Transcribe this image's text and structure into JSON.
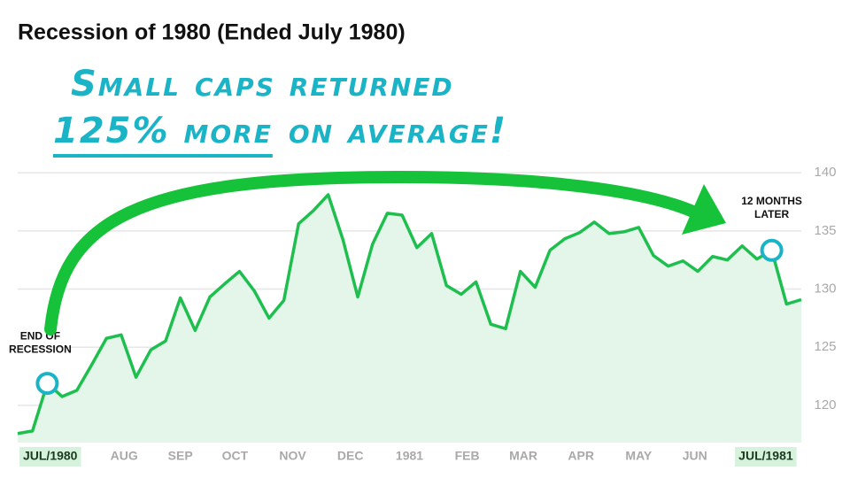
{
  "chart_data": {
    "type": "area",
    "title": "Recession of 1980 (Ended July 1980)",
    "headline": [
      "Small caps returned",
      "125% more",
      "on average!"
    ],
    "values": [
      117.58,
      117.8,
      121.89,
      120.76,
      121.29,
      123.48,
      125.76,
      126.06,
      122.42,
      124.77,
      125.53,
      129.24,
      126.44,
      129.32,
      130.45,
      131.52,
      129.85,
      127.5,
      129.02,
      135.61,
      136.74,
      138.11,
      134.24,
      129.32,
      133.86,
      136.52,
      136.36,
      133.56,
      134.77,
      130.3,
      129.55,
      130.61,
      126.97,
      126.59,
      131.52,
      130.15,
      133.33,
      134.32,
      134.85,
      135.76,
      134.77,
      134.92,
      135.3,
      132.88,
      131.97,
      132.42,
      131.52,
      132.8,
      132.5,
      133.71,
      132.58,
      133.33,
      128.71,
      129.09
    ],
    "color": "#1fbf4f",
    "fill_color": "#e4f6e9",
    "xlim": [
      0,
      53
    ],
    "xticks": [
      {
        "value": 2.2,
        "label": "JUL/1980"
      },
      {
        "value": 7.2,
        "label": "AUG"
      },
      {
        "value": 11,
        "label": "SEP"
      },
      {
        "value": 14.7,
        "label": "OCT"
      },
      {
        "value": 18.6,
        "label": "NOV"
      },
      {
        "value": 22.5,
        "label": "DEC"
      },
      {
        "value": 26.5,
        "label": "1981"
      },
      {
        "value": 30.4,
        "label": "FEB"
      },
      {
        "value": 34.2,
        "label": "MAR"
      },
      {
        "value": 38.1,
        "label": "APR"
      },
      {
        "value": 42,
        "label": "MAY"
      },
      {
        "value": 45.8,
        "label": "JUN"
      },
      {
        "value": 50.6,
        "label": "JUL/1981"
      }
    ],
    "highlight_ticks": [
      0,
      12
    ],
    "ylim": [
      116.8,
      141
    ],
    "yticks": [
      120,
      125,
      130,
      135,
      140
    ],
    "grid": true,
    "markers": [
      {
        "index": 2,
        "lines": [
          "END OF",
          "RECESSION"
        ]
      },
      {
        "index": 51,
        "lines": [
          "12 MONTHS",
          "LATER"
        ]
      }
    ],
    "marker_color": "#1bb3c6"
  }
}
